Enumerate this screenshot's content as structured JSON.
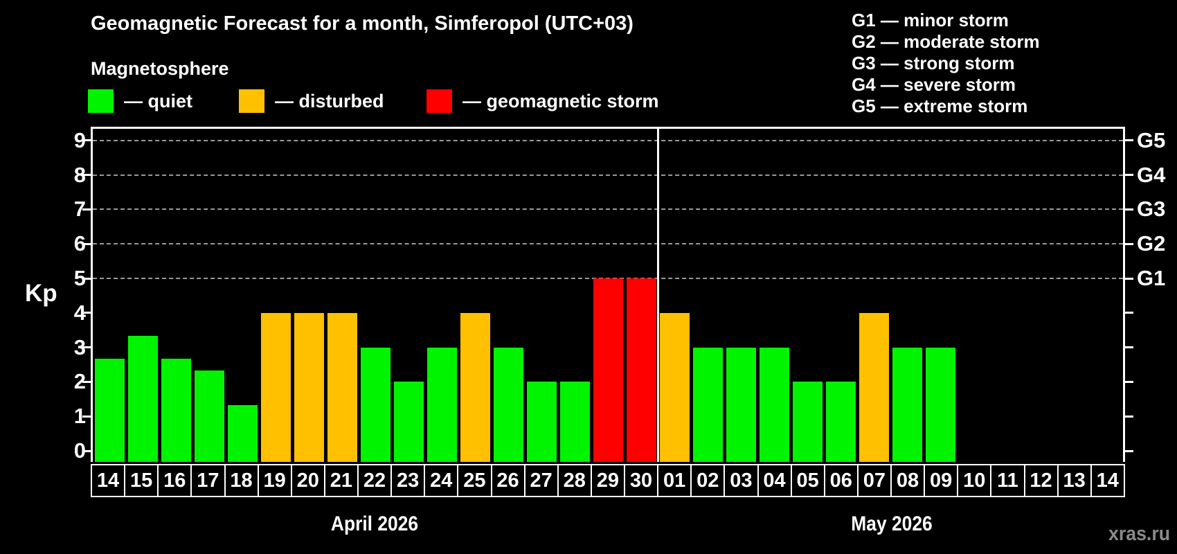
{
  "title": "Geomagnetic Forecast for a month, Simferopol (UTC+03)",
  "subtitle": "Magnetosphere",
  "legend": {
    "items": [
      {
        "status": "quiet",
        "label": "— quiet",
        "color": "#00f400"
      },
      {
        "status": "disturbed",
        "label": "— disturbed",
        "color": "#ffc000"
      },
      {
        "status": "storm",
        "label": "— geomagnetic storm",
        "color": "#ff0000"
      }
    ]
  },
  "g_legend": [
    "G1 — minor storm",
    "G2 — moderate storm",
    "G3 — strong storm",
    "G4 — severe storm",
    "G5 — extreme storm"
  ],
  "watermark": "xras.ru",
  "chart_data": {
    "type": "bar",
    "ylabel": "Kp",
    "y_axis": {
      "label": "Kp",
      "ticks": [
        0,
        1,
        2,
        3,
        4,
        5,
        6,
        7,
        8,
        9
      ],
      "range": [
        0,
        9.4
      ]
    },
    "right_axis": {
      "ticks": [
        0,
        1,
        2,
        3,
        4,
        5,
        6,
        7,
        8,
        9
      ],
      "labels": [
        {
          "kp": 5,
          "label": "G1"
        },
        {
          "kp": 6,
          "label": "G2"
        },
        {
          "kp": 7,
          "label": "G3"
        },
        {
          "kp": 8,
          "label": "G4"
        },
        {
          "kp": 9,
          "label": "G5"
        }
      ]
    },
    "gridlines_kp": [
      5,
      6,
      7,
      8,
      9
    ],
    "grid": "dashed horizontal at G-levels only",
    "legend_position": "top-left",
    "status_colors": {
      "quiet": "#00f400",
      "disturbed": "#ffc000",
      "storm": "#ff0000"
    },
    "months": [
      {
        "label": "April 2026",
        "days": [
          {
            "date": "14",
            "kp": 2.67,
            "status": "quiet"
          },
          {
            "date": "15",
            "kp": 3.33,
            "status": "quiet"
          },
          {
            "date": "16",
            "kp": 2.67,
            "status": "quiet"
          },
          {
            "date": "17",
            "kp": 2.33,
            "status": "quiet"
          },
          {
            "date": "18",
            "kp": 1.33,
            "status": "quiet"
          },
          {
            "date": "19",
            "kp": 4,
            "status": "disturbed"
          },
          {
            "date": "20",
            "kp": 4,
            "status": "disturbed"
          },
          {
            "date": "21",
            "kp": 4,
            "status": "disturbed"
          },
          {
            "date": "22",
            "kp": 3,
            "status": "quiet"
          },
          {
            "date": "23",
            "kp": 2,
            "status": "quiet"
          },
          {
            "date": "24",
            "kp": 3,
            "status": "quiet"
          },
          {
            "date": "25",
            "kp": 4,
            "status": "disturbed"
          },
          {
            "date": "26",
            "kp": 3,
            "status": "quiet"
          },
          {
            "date": "27",
            "kp": 2,
            "status": "quiet"
          },
          {
            "date": "28",
            "kp": 2,
            "status": "quiet"
          },
          {
            "date": "29",
            "kp": 5,
            "status": "storm"
          },
          {
            "date": "30",
            "kp": 5,
            "status": "storm"
          }
        ]
      },
      {
        "label": "May 2026",
        "days": [
          {
            "date": "01",
            "kp": 4,
            "status": "disturbed"
          },
          {
            "date": "02",
            "kp": 3,
            "status": "quiet"
          },
          {
            "date": "03",
            "kp": 3,
            "status": "quiet"
          },
          {
            "date": "04",
            "kp": 3,
            "status": "quiet"
          },
          {
            "date": "05",
            "kp": 2,
            "status": "quiet"
          },
          {
            "date": "06",
            "kp": 2,
            "status": "quiet"
          },
          {
            "date": "07",
            "kp": 4,
            "status": "disturbed"
          },
          {
            "date": "08",
            "kp": 3,
            "status": "quiet"
          },
          {
            "date": "09",
            "kp": 3,
            "status": "quiet"
          },
          {
            "date": "10",
            "kp": null,
            "status": null
          },
          {
            "date": "11",
            "kp": null,
            "status": null
          },
          {
            "date": "12",
            "kp": null,
            "status": null
          },
          {
            "date": "13",
            "kp": null,
            "status": null
          },
          {
            "date": "14",
            "kp": null,
            "status": null
          }
        ]
      }
    ]
  }
}
